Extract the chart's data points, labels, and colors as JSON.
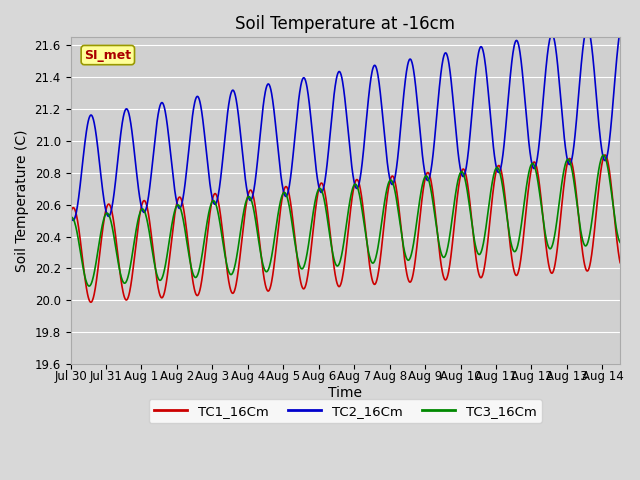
{
  "title": "Soil Temperature at -16cm",
  "xlabel": "Time",
  "ylabel": "Soil Temperature (C)",
  "ylim": [
    19.6,
    21.65
  ],
  "xlim_days": [
    0,
    15.5
  ],
  "xtick_positions": [
    0,
    1,
    2,
    3,
    4,
    5,
    6,
    7,
    8,
    9,
    10,
    11,
    12,
    13,
    14,
    15
  ],
  "xtick_labels": [
    "Jul 30",
    "Jul 31",
    "Aug 1",
    "Aug 2",
    "Aug 3",
    "Aug 4",
    "Aug 5",
    "Aug 6",
    "Aug 7",
    "Aug 8",
    "Aug 9",
    "Aug 10",
    "Aug 11",
    "Aug 12",
    "Aug 13",
    "Aug 14"
  ],
  "legend_labels": [
    "TC1_16Cm",
    "TC2_16Cm",
    "TC3_16Cm"
  ],
  "line_colors": [
    "#cc0000",
    "#0000cc",
    "#008800"
  ],
  "line_width": 1.2,
  "fig_bg_color": "#d8d8d8",
  "plot_bg_color": "#d0d0d0",
  "annotation_text": "SI_met",
  "annotation_bg": "#ffff99",
  "annotation_border": "#999900",
  "annotation_text_color": "#aa0000",
  "grid_color": "#ffffff",
  "title_fontsize": 12,
  "label_fontsize": 10,
  "tick_fontsize": 8.5,
  "legend_fontsize": 9.5
}
